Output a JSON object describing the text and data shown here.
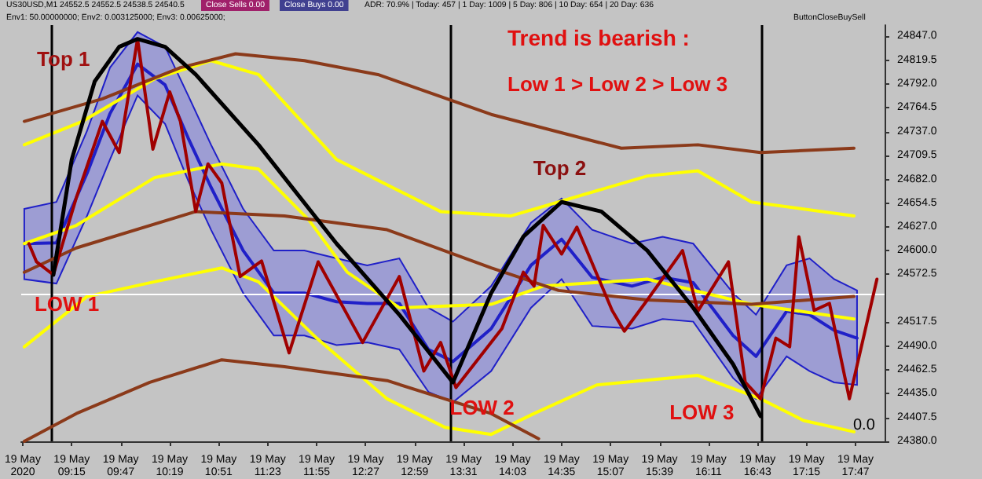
{
  "chart_data": {
    "type": "line",
    "grid": false,
    "marker": "none",
    "line_style": "solid",
    "xlim": [
      "2020-05-19T08:42",
      "2020-05-19T18:06"
    ],
    "xticks": [
      {
        "value": "2020-05-19T08:43",
        "label": "19 May 2020"
      },
      {
        "value": "2020-05-19T09:15",
        "label": "19 May 09:15"
      },
      {
        "value": "2020-05-19T09:47",
        "label": "19 May 09:47"
      },
      {
        "value": "2020-05-19T10:19",
        "label": "19 May 10:19"
      },
      {
        "value": "2020-05-19T10:51",
        "label": "19 May 10:51"
      },
      {
        "value": "2020-05-19T11:23",
        "label": "19 May 11:23"
      },
      {
        "value": "2020-05-19T11:55",
        "label": "19 May 11:55"
      },
      {
        "value": "2020-05-19T12:27",
        "label": "19 May 12:27"
      },
      {
        "value": "2020-05-19T12:59",
        "label": "19 May 12:59"
      },
      {
        "value": "2020-05-19T13:31",
        "label": "19 May 13:31"
      },
      {
        "value": "2020-05-19T14:03",
        "label": "19 May 14:03"
      },
      {
        "value": "2020-05-19T14:35",
        "label": "19 May 14:35"
      },
      {
        "value": "2020-05-19T15:07",
        "label": "19 May 15:07"
      },
      {
        "value": "2020-05-19T15:39",
        "label": "19 May 15:39"
      },
      {
        "value": "2020-05-19T16:11",
        "label": "19 May 16:11"
      },
      {
        "value": "2020-05-19T16:43",
        "label": "19 May 16:43"
      },
      {
        "value": "2020-05-19T17:15",
        "label": "19 May 17:15"
      },
      {
        "value": "2020-05-19T17:47",
        "label": "19 May 17:47"
      }
    ],
    "ylim": [
      24380,
      24860
    ],
    "yticks": [
      {
        "value": 24847,
        "label": "24847.0"
      },
      {
        "value": 24819.5,
        "label": "24819.5"
      },
      {
        "value": 24792,
        "label": "24792.0"
      },
      {
        "value": 24764.5,
        "label": "24764.5"
      },
      {
        "value": 24737,
        "label": "24737.0"
      },
      {
        "value": 24709.5,
        "label": "24709.5"
      },
      {
        "value": 24682,
        "label": "24682.0"
      },
      {
        "value": 24654.5,
        "label": "24654.5"
      },
      {
        "value": 24627,
        "label": "24627.0"
      },
      {
        "value": 24600,
        "label": "24600.0"
      },
      {
        "value": 24572.5,
        "label": "24572.5"
      },
      {
        "value": 24517.5,
        "label": "24517.5"
      },
      {
        "value": 24490,
        "label": "24490.0"
      },
      {
        "value": 24462.5,
        "label": "24462.5"
      },
      {
        "value": 24435,
        "label": "24435.0"
      },
      {
        "value": 24407.5,
        "label": "24407.5"
      },
      {
        "value": 24380,
        "label": "24380.0"
      }
    ],
    "ref_lines": [
      {
        "axis": "y",
        "value": 24549,
        "color": "#ffffff"
      },
      {
        "axis": "x",
        "value": "2020-05-19T09:02",
        "color": "#000000"
      },
      {
        "axis": "x",
        "value": "2020-05-19T13:22",
        "color": "#000000"
      },
      {
        "axis": "x",
        "value": "2020-05-19T16:46",
        "color": "#000000"
      }
    ],
    "annotations": [
      "US30USD,M1 24552.5 24552.5 24538.5 24540.5",
      "Close Sells 0.00",
      "Close Buys 0.00",
      "ADR: 70.9% | Today: 457 | 1 Day: 1009 | 5 Day: 806 | 10 Day: 654 | 20 Day: 636",
      "Env1: 50.00000000; Env2: 0.003125000; Env3: 0.00625000;",
      "ButtonCloseBuySell",
      "Trend is bearish :",
      "Low 1 > Low 2 > Low 3",
      "0.0",
      {
        "text": "Top 1",
        "x": "2020-05-19T09:58",
        "y": 24844
      },
      {
        "text": "LOW 1",
        "x": "2020-05-19T09:03",
        "y": 24572
      },
      {
        "text": "Top 2",
        "x": "2020-05-19T14:35",
        "y": 24656
      },
      {
        "text": "LOW 2",
        "x": "2020-05-19T13:24",
        "y": 24442
      },
      {
        "text": "LOW 3",
        "x": "2020-05-19T16:45",
        "y": 24429
      }
    ],
    "series": [
      {
        "color": "#2020c8",
        "x": [
          "2020-05-19T08:44",
          "2020-05-19T09:05",
          "2020-05-19T09:25",
          "2020-05-19T09:40",
          "2020-05-19T09:58",
          "2020-05-19T10:16",
          "2020-05-19T10:31",
          "2020-05-19T10:46",
          "2020-05-19T11:07",
          "2020-05-19T11:27",
          "2020-05-19T11:47",
          "2020-05-19T12:08",
          "2020-05-19T12:28",
          "2020-05-19T12:49",
          "2020-05-19T13:08",
          "2020-05-19T13:24",
          "2020-05-19T13:49",
          "2020-05-19T14:15",
          "2020-05-19T14:35",
          "2020-05-19T14:55",
          "2020-05-19T15:21",
          "2020-05-19T15:41",
          "2020-05-19T16:01",
          "2020-05-19T16:27",
          "2020-05-19T16:42",
          "2020-05-19T17:02",
          "2020-05-19T17:17",
          "2020-05-19T17:33",
          "2020-05-19T17:48"
        ],
        "values": [
          24608,
          24609,
          24689,
          24758,
          24815,
          24791,
          24730,
          24673,
          24600,
          24551,
          24551,
          24541,
          24539,
          24539,
          24486,
          24472,
          24510,
          24583,
          24613,
          24569,
          24559,
          24569,
          24563,
          24502,
          24478,
          24530,
          24526,
          24508,
          24499
        ],
        "upper": [
          24648,
          24656,
          24738,
          24811,
          24852,
          24835,
          24779,
          24722,
          24648,
          24600,
          24600,
          24591,
          24583,
          24591,
          24534,
          24518,
          24559,
          24632,
          24660,
          24624,
          24608,
          24616,
          24608,
          24551,
          24526,
          24583,
          24591,
          24567,
          24554
        ],
        "lower": [
          24567,
          24562,
          24640,
          24705,
          24779,
          24746,
          24681,
          24624,
          24551,
          24502,
          24502,
          24491,
          24494,
          24486,
          24437,
          24425,
          24461,
          24534,
          24567,
          24513,
          24510,
          24521,
          24518,
          24453,
          24429,
          24478,
          24461,
          24448,
          24445
        ]
      },
      {
        "color": "#ffff00",
        "x": [
          "2020-05-19T08:44",
          "2020-05-19T09:22",
          "2020-05-19T10:09",
          "2020-05-19T10:46",
          "2020-05-19T11:17",
          "2020-05-19T12:08",
          "2020-05-19T13:16",
          "2020-05-19T14:02",
          "2020-05-19T14:33",
          "2020-05-19T15:31",
          "2020-05-19T16:04",
          "2020-05-19T16:39",
          "2020-05-19T17:46"
        ],
        "values": [
          24722,
          24749,
          24798,
          24819,
          24803,
          24705,
          24645,
          24640,
          24656,
          24686,
          24692,
          24656,
          24640
        ]
      },
      {
        "color": "#ffff00",
        "x": [
          "2020-05-19T08:44",
          "2020-05-19T09:25",
          "2020-05-19T10:09",
          "2020-05-19T10:53",
          "2020-05-19T11:17",
          "2020-05-19T11:55",
          "2020-05-19T12:41",
          "2020-05-19T13:19",
          "2020-05-19T13:49",
          "2020-05-19T14:17",
          "2020-05-19T14:58",
          "2020-05-19T16:04",
          "2020-05-19T16:45",
          "2020-05-19T17:13",
          "2020-05-19T17:46"
        ],
        "values": [
          24489,
          24547,
          24564,
          24580,
          24564,
          24499,
          24429,
          24396,
          24388,
          24412,
          24445,
          24456,
          24429,
          24404,
          24391
        ]
      },
      {
        "color": "#ffff00",
        "x": [
          "2020-05-19T08:44",
          "2020-05-19T09:18",
          "2020-05-19T10:09",
          "2020-05-19T10:53",
          "2020-05-19T11:17",
          "2020-05-19T11:50",
          "2020-05-19T12:15",
          "2020-05-19T12:49",
          "2020-05-19T13:49",
          "2020-05-19T14:23",
          "2020-05-19T15:31",
          "2020-05-19T16:39",
          "2020-05-19T17:46"
        ],
        "values": [
          24608,
          24629,
          24684,
          24700,
          24694,
          24635,
          24575,
          24534,
          24538,
          24559,
          24567,
          24538,
          24521
        ]
      },
      {
        "color": "#8b3a1a",
        "x": [
          "2020-05-19T08:44",
          "2020-05-19T09:35",
          "2020-05-19T10:26",
          "2020-05-19T11:02",
          "2020-05-19T11:47",
          "2020-05-19T12:35",
          "2020-05-19T13:49",
          "2020-05-19T15:14",
          "2020-05-19T16:04",
          "2020-05-19T16:45",
          "2020-05-19T17:46"
        ],
        "values": [
          24749,
          24775,
          24811,
          24827,
          24819,
          24803,
          24757,
          24718,
          24722,
          24713,
          24718
        ]
      },
      {
        "color": "#8b3a1a",
        "x": [
          "2020-05-19T08:44",
          "2020-05-19T09:18",
          "2020-05-19T10:36",
          "2020-05-19T11:34",
          "2020-05-19T12:41",
          "2020-05-19T13:49",
          "2020-05-19T14:33",
          "2020-05-19T15:31",
          "2020-05-19T16:39",
          "2020-05-19T17:46"
        ],
        "values": [
          24575,
          24603,
          24645,
          24640,
          24624,
          24580,
          24554,
          24543,
          24538,
          24547
        ]
      },
      {
        "color": "#8b3a1a",
        "x": [
          "2020-05-19T08:44",
          "2020-05-19T09:18",
          "2020-05-19T10:06",
          "2020-05-19T10:53",
          "2020-05-19T11:34",
          "2020-05-19T12:41",
          "2020-05-19T13:49",
          "2020-05-19T14:20"
        ],
        "values": [
          24380,
          24412,
          24448,
          24474,
          24466,
          24450,
          24412,
          24383
        ]
      },
      {
        "color": "#a00000",
        "x": [
          "2020-05-19T08:47",
          "2020-05-19T08:52",
          "2020-05-19T09:03",
          "2020-05-19T09:18",
          "2020-05-19T09:35",
          "2020-05-19T09:46",
          "2020-05-19T09:58",
          "2020-05-19T10:08",
          "2020-05-19T10:19",
          "2020-05-19T10:26",
          "2020-05-19T10:36",
          "2020-05-19T10:44",
          "2020-05-19T10:53",
          "2020-05-19T11:05",
          "2020-05-19T11:19",
          "2020-05-19T11:37",
          "2020-05-19T11:56",
          "2020-05-19T12:25",
          "2020-05-19T12:49",
          "2020-05-19T13:05",
          "2020-05-19T13:16",
          "2020-05-19T13:26",
          "2020-05-19T13:56",
          "2020-05-19T14:10",
          "2020-05-19T14:17",
          "2020-05-19T14:23",
          "2020-05-19T14:35",
          "2020-05-19T14:45",
          "2020-05-19T15:08",
          "2020-05-19T15:16",
          "2020-05-19T15:31",
          "2020-05-19T15:54",
          "2020-05-19T16:04",
          "2020-05-19T16:24",
          "2020-05-19T16:35",
          "2020-05-19T16:45",
          "2020-05-19T16:55",
          "2020-05-19T17:04",
          "2020-05-19T17:10",
          "2020-05-19T17:20",
          "2020-05-19T17:30",
          "2020-05-19T17:43",
          "2020-05-19T18:01"
        ],
        "values": [
          24608,
          24587,
          24572,
          24661,
          24749,
          24713,
          24844,
          24717,
          24783,
          24749,
          24645,
          24700,
          24678,
          24570,
          24588,
          24482,
          24587,
          24494,
          24570,
          24461,
          24494,
          24442,
          24510,
          24575,
          24559,
          24629,
          24596,
          24627,
          24531,
          24507,
          24543,
          24600,
          24530,
          24587,
          24448,
          24429,
          24499,
          24489,
          24616,
          24531,
          24539,
          24429,
          24567
        ]
      },
      {
        "color": "#000000",
        "x": [
          "2020-05-19T09:03",
          "2020-05-19T09:15",
          "2020-05-19T09:30",
          "2020-05-19T09:46",
          "2020-05-19T09:58",
          "2020-05-19T10:16",
          "2020-05-19T10:36",
          "2020-05-19T11:17",
          "2020-05-19T12:08",
          "2020-05-19T12:49",
          "2020-05-19T13:24",
          "2020-05-19T13:49",
          "2020-05-19T14:10",
          "2020-05-19T14:35",
          "2020-05-19T15:01",
          "2020-05-19T15:31",
          "2020-05-19T16:01",
          "2020-05-19T16:27",
          "2020-05-19T16:45"
        ],
        "values": [
          24572,
          24705,
          24795,
          24835,
          24844,
          24835,
          24803,
          24722,
          24608,
          24526,
          24448,
          24551,
          24616,
          24656,
          24645,
          24600,
          24534,
          24469,
          24409
        ]
      }
    ]
  }
}
